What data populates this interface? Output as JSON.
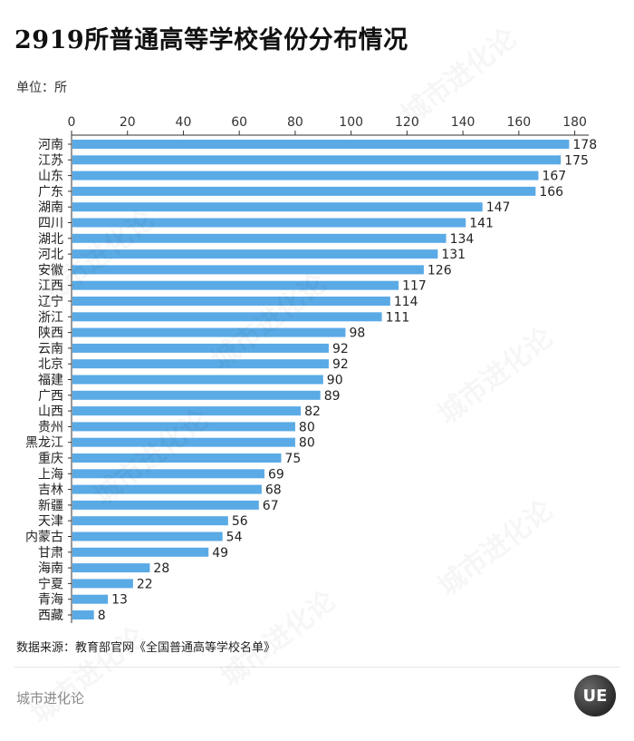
{
  "header": {
    "title": "2919所普通高等学校省份分布情况",
    "unit": "单位：所"
  },
  "footer": {
    "source": "数据来源：教育部官网《全国普通高等学校名单》",
    "brand": "城市进化论",
    "logo_text": "UE"
  },
  "watermark": "城市进化论",
  "colors": {
    "bar": "#5aaae6",
    "text": "#222222"
  },
  "chart_data": {
    "type": "bar",
    "orientation": "horizontal",
    "categories": [
      "河南",
      "江苏",
      "山东",
      "广东",
      "湖南",
      "四川",
      "湖北",
      "河北",
      "安徽",
      "江西",
      "辽宁",
      "浙江",
      "陕西",
      "云南",
      "北京",
      "福建",
      "广西",
      "山西",
      "贵州",
      "黑龙江",
      "重庆",
      "上海",
      "吉林",
      "新疆",
      "天津",
      "内蒙古",
      "甘肃",
      "海南",
      "宁夏",
      "青海",
      "西藏"
    ],
    "values": [
      178,
      175,
      167,
      166,
      147,
      141,
      134,
      131,
      126,
      117,
      114,
      111,
      98,
      92,
      92,
      90,
      89,
      82,
      80,
      80,
      75,
      69,
      68,
      67,
      56,
      54,
      49,
      28,
      22,
      13,
      8
    ],
    "xlim": [
      0,
      185
    ],
    "xticks": [
      0,
      20,
      40,
      60,
      80,
      100,
      120,
      140,
      160,
      180
    ],
    "axis_position": "top",
    "title": "2919所普通高等学校省份分布情况",
    "xlabel": "单位：所",
    "ylabel": ""
  }
}
